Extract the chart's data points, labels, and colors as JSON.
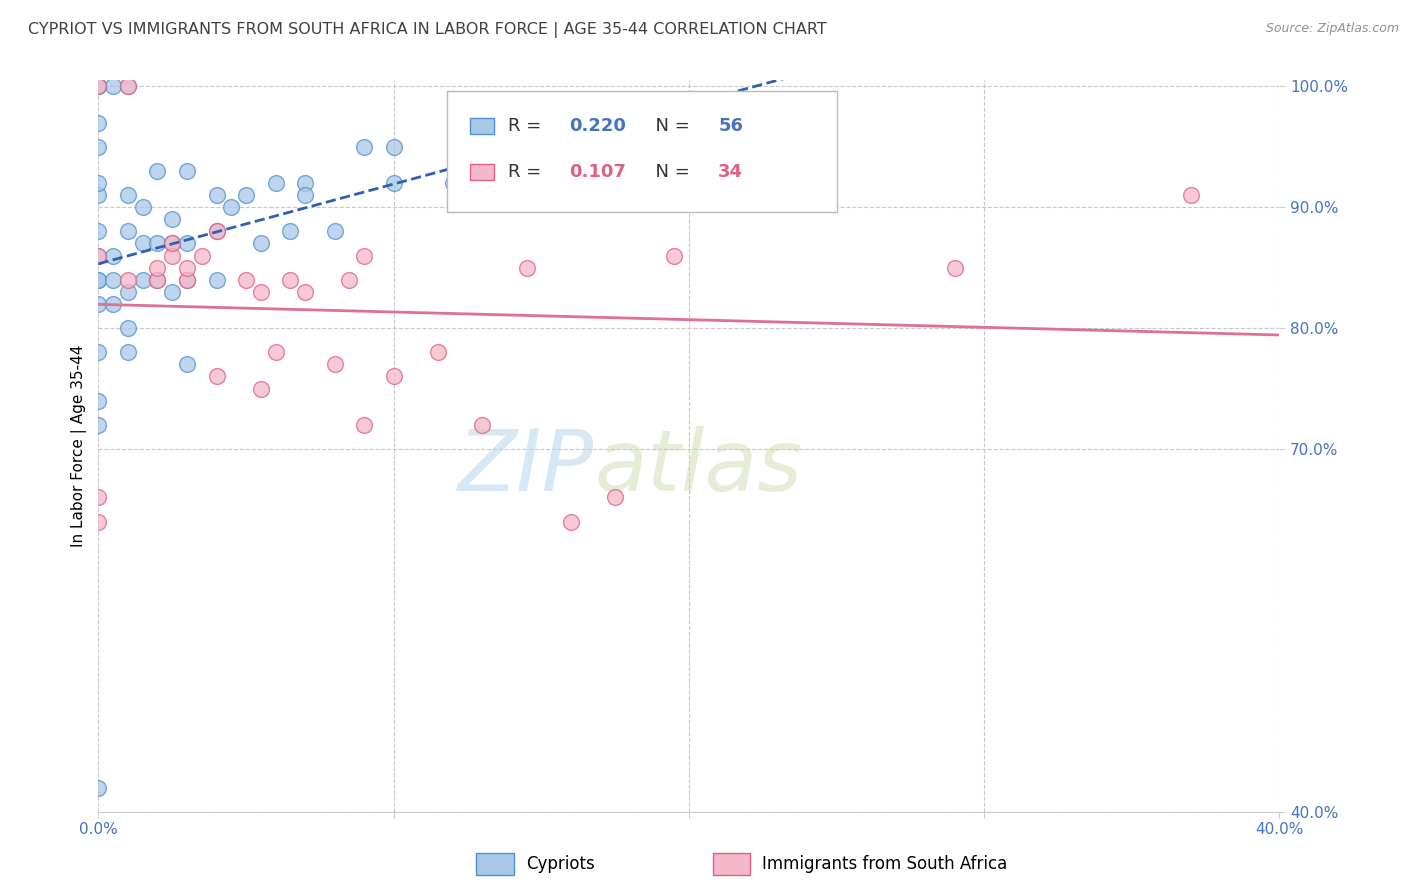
{
  "title": "CYPRIOT VS IMMIGRANTS FROM SOUTH AFRICA IN LABOR FORCE | AGE 35-44 CORRELATION CHART",
  "source": "Source: ZipAtlas.com",
  "ylabel": "In Labor Force | Age 35-44",
  "xmin": 0.0,
  "xmax": 0.4,
  "ymin": 0.4,
  "ymax": 1.005,
  "ytick_labels": [
    "100.0%",
    "90.0%",
    "80.0%",
    "70.0%",
    "40.0%"
  ],
  "ytick_values": [
    1.0,
    0.9,
    0.8,
    0.7,
    0.4
  ],
  "xtick_labels": [
    "0.0%",
    "",
    "",
    "",
    "40.0%"
  ],
  "xtick_values": [
    0.0,
    0.1,
    0.2,
    0.3,
    0.4
  ],
  "legend_r1": "0.220",
  "legend_n1": "56",
  "legend_r2": "0.107",
  "legend_n2": "34",
  "color_cypriot_fill": "#a8c8e8",
  "color_cypriot_edge": "#5090d0",
  "color_sa_fill": "#f5b8c8",
  "color_sa_edge": "#e06080",
  "color_cypriot_line": "#3060b0",
  "color_sa_line": "#e07090",
  "color_axis_right": "#4472c4",
  "color_title": "#404040",
  "color_source": "#909090",
  "grid_color": "#c8c8c8",
  "cypriot_x": [
    0.0,
    0.0,
    0.0,
    0.0,
    0.0,
    0.0,
    0.0,
    0.0,
    0.0,
    0.0,
    0.0,
    0.0,
    0.0,
    0.0,
    0.0,
    0.005,
    0.005,
    0.005,
    0.005,
    0.01,
    0.01,
    0.01,
    0.01,
    0.01,
    0.01,
    0.015,
    0.015,
    0.015,
    0.02,
    0.02,
    0.02,
    0.025,
    0.025,
    0.025,
    0.03,
    0.03,
    0.03,
    0.03,
    0.04,
    0.04,
    0.04,
    0.045,
    0.05,
    0.055,
    0.06,
    0.065,
    0.07,
    0.07,
    0.08,
    0.09,
    0.1,
    0.1,
    0.12,
    0.14,
    0.155,
    0.165
  ],
  "cypriot_y": [
    0.42,
    0.72,
    0.74,
    0.78,
    0.82,
    0.84,
    0.84,
    0.86,
    0.88,
    0.91,
    0.92,
    0.95,
    0.97,
    1.0,
    1.0,
    0.82,
    0.84,
    0.86,
    1.0,
    0.78,
    0.8,
    0.83,
    0.88,
    0.91,
    1.0,
    0.84,
    0.87,
    0.9,
    0.84,
    0.87,
    0.93,
    0.83,
    0.87,
    0.89,
    0.77,
    0.84,
    0.87,
    0.93,
    0.84,
    0.88,
    0.91,
    0.9,
    0.91,
    0.87,
    0.92,
    0.88,
    0.92,
    0.91,
    0.88,
    0.95,
    0.92,
    0.95,
    0.92,
    0.95,
    0.93,
    0.95
  ],
  "sa_x": [
    0.0,
    0.0,
    0.0,
    0.0,
    0.01,
    0.01,
    0.02,
    0.02,
    0.025,
    0.025,
    0.03,
    0.03,
    0.035,
    0.04,
    0.04,
    0.05,
    0.055,
    0.055,
    0.06,
    0.065,
    0.07,
    0.08,
    0.085,
    0.09,
    0.09,
    0.1,
    0.115,
    0.13,
    0.145,
    0.16,
    0.175,
    0.195,
    0.29,
    0.37
  ],
  "sa_y": [
    0.64,
    0.66,
    0.86,
    1.0,
    0.84,
    1.0,
    0.84,
    0.85,
    0.86,
    0.87,
    0.84,
    0.85,
    0.86,
    0.76,
    0.88,
    0.84,
    0.75,
    0.83,
    0.78,
    0.84,
    0.83,
    0.77,
    0.84,
    0.72,
    0.86,
    0.76,
    0.78,
    0.72,
    0.85,
    0.64,
    0.66,
    0.86,
    0.85,
    0.91
  ]
}
